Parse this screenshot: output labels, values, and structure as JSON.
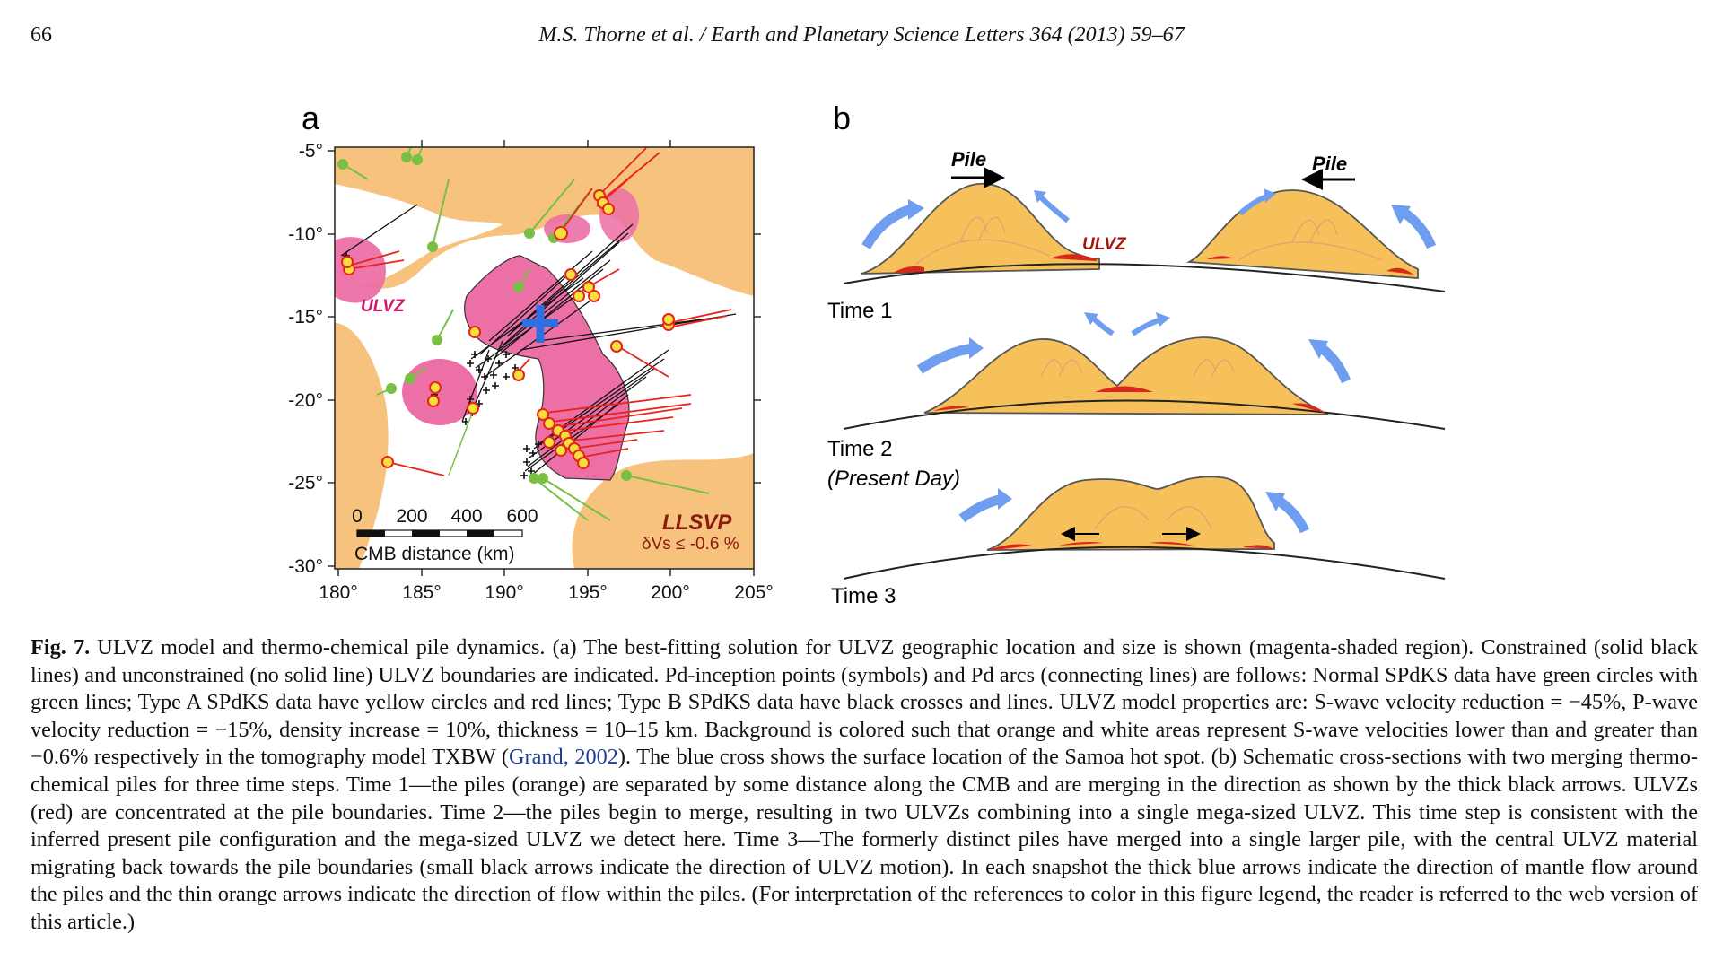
{
  "header": {
    "page_number": "66",
    "running_head": "M.S. Thorne et al. / Earth and Planetary Science Letters 364 (2013) 59–67"
  },
  "figure": {
    "panel_a": {
      "label": "a",
      "y_ticks": [
        "-5°",
        "-10°",
        "-15°",
        "-20°",
        "-25°",
        "-30°"
      ],
      "x_ticks": [
        "180°",
        "185°",
        "190°",
        "195°",
        "200°",
        "205°"
      ],
      "ulvz_label": "ULVZ",
      "llsvp_label": "LLSVP",
      "llsvp_sub": "δVs ≤ -0.6 %",
      "scale_ticks": [
        "0",
        "200",
        "400",
        "600"
      ],
      "scale_label": "CMB distance (km)",
      "colors": {
        "orange_bg": "#f7c27e",
        "ulvz_pink": "#ec6fa6",
        "samoa_cross": "#2f6fe0",
        "normal_green": "#78c043",
        "typeA_red": "#e8231c",
        "typeA_yellow": "#f4e23a"
      }
    },
    "panel_b": {
      "label": "b",
      "pile_left": "Pile",
      "pile_right": "Pile",
      "ulvz_label": "ULVZ",
      "time1": "Time 1",
      "time2": "Time 2",
      "time2_sub": "(Present Day)",
      "time3": "Time 3",
      "colors": {
        "pile_fill": "#f6c15a",
        "ulvz_red": "#d8281c",
        "flow_blue": "#6f9ef0"
      }
    }
  },
  "caption": {
    "fig_label": "Fig. 7.",
    "text_1": " ULVZ model and thermo-chemical pile dynamics. (a) The best-fitting solution for ULVZ geographic location and size is shown (magenta-shaded region). Constrained (solid black lines) and unconstrained (no solid line) ULVZ boundaries are indicated. Pd-inception points (symbols) and Pd arcs (connecting lines) are follows: Normal SPdKS data have green circles with green lines; Type A SPdKS data have yellow circles and red lines; Type B SPdKS data have black crosses and lines. ULVZ model properties are: S-wave velocity reduction = −45%, P-wave velocity reduction = −15%, density increase = 10%, thickness = 10–15 km. Background is colored such that orange and white areas represent S-wave velocities lower than and greater than −0.6% respectively in the tomography model TXBW (",
    "ref": "Grand, 2002",
    "text_2": "). The blue cross shows the surface location of the Samoa hot spot. (b) Schematic cross-sections with two merging thermo-chemical piles for three time steps. Time 1—the piles (orange) are separated by some distance along the CMB and are merging in the direction as shown by the thick black arrows. ULVZs (red) are concentrated at the pile boundaries. Time 2—the piles begin to merge, resulting in two ULVZs combining into a single mega-sized ULVZ. This time step is consistent with the inferred present pile configuration and the mega-sized ULVZ we detect here. Time 3—The formerly distinct piles have merged into a single larger pile, with the central ULVZ material migrating back towards the pile boundaries (small black arrows indicate the direction of ULVZ motion). In each snapshot the thick blue arrows indicate the direction of mantle flow around the piles and the thin orange arrows indicate the direction of flow within the piles. (For interpretation of the references to color in this figure legend, the reader is referred to the web version of this article.)"
  }
}
